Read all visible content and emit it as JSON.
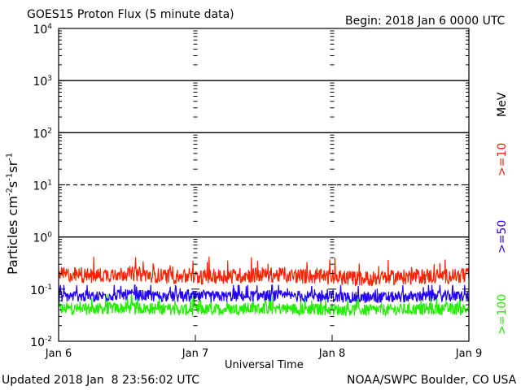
{
  "title": "GOES15 Proton Flux (5 minute data)",
  "begin_label": "Begin: 2018 Jan 6 0000 UTC",
  "updated_label": "Updated 2018 Jan  8 23:56:02 UTC",
  "credit_label": "NOAA/SWPC Boulder, CO USA",
  "chart_data": {
    "type": "line",
    "title": "GOES15 Proton Flux (5 minute data)",
    "xlabel": "Universal Time",
    "ylabel": "Particles cm-2 s-1 sr-1",
    "yscale": "log",
    "ylim": [
      0.01,
      10000
    ],
    "xlim": [
      "2018-01-06 00:00",
      "2018-01-09 00:00"
    ],
    "x_ticks": [
      "Jan 6",
      "Jan 7",
      "Jan 8",
      "Jan 9"
    ],
    "y_ticks": [
      {
        "base": "10",
        "exp": "-2",
        "value": 0.01
      },
      {
        "base": "10",
        "exp": "-1",
        "value": 0.1
      },
      {
        "base": "10",
        "exp": "0",
        "value": 1
      },
      {
        "base": "10",
        "exp": "1",
        "value": 10
      },
      {
        "base": "10",
        "exp": "2",
        "value": 100
      },
      {
        "base": "10",
        "exp": "3",
        "value": 1000
      },
      {
        "base": "10",
        "exp": "4",
        "value": 10000
      }
    ],
    "threshold_lines": [
      {
        "value": 1,
        "style": "solid"
      },
      {
        "value": 10,
        "style": "dashed"
      },
      {
        "value": 100,
        "style": "solid"
      },
      {
        "value": 1000,
        "style": "solid"
      }
    ],
    "unit_label": "MeV",
    "grid": false,
    "legend_position": "right",
    "series": [
      {
        "name": ">=10",
        "color": "#ff2200",
        "typical": 0.17,
        "min": 0.1,
        "max": 0.45,
        "x": [
          "2018-01-06 00:00",
          "2018-01-06 06:00",
          "2018-01-06 12:00",
          "2018-01-06 18:00",
          "2018-01-07 00:00",
          "2018-01-07 06:00",
          "2018-01-07 12:00",
          "2018-01-07 18:00",
          "2018-01-08 00:00",
          "2018-01-08 06:00",
          "2018-01-08 12:00",
          "2018-01-08 18:00",
          "2018-01-09 00:00"
        ],
        "values": [
          0.18,
          0.17,
          0.19,
          0.17,
          0.16,
          0.17,
          0.18,
          0.17,
          0.16,
          0.15,
          0.16,
          0.17,
          0.17
        ]
      },
      {
        "name": ">=50",
        "color": "#2200ff",
        "typical": 0.07,
        "min": 0.04,
        "max": 0.12,
        "x": [
          "2018-01-06 00:00",
          "2018-01-06 06:00",
          "2018-01-06 12:00",
          "2018-01-06 18:00",
          "2018-01-07 00:00",
          "2018-01-07 06:00",
          "2018-01-07 12:00",
          "2018-01-07 18:00",
          "2018-01-08 00:00",
          "2018-01-08 06:00",
          "2018-01-08 12:00",
          "2018-01-08 18:00",
          "2018-01-09 00:00"
        ],
        "values": [
          0.07,
          0.07,
          0.075,
          0.07,
          0.068,
          0.07,
          0.072,
          0.07,
          0.068,
          0.066,
          0.068,
          0.07,
          0.07
        ]
      },
      {
        "name": ">=100",
        "color": "#22ee00",
        "typical": 0.04,
        "min": 0.025,
        "max": 0.08,
        "x": [
          "2018-01-06 00:00",
          "2018-01-06 06:00",
          "2018-01-06 12:00",
          "2018-01-06 18:00",
          "2018-01-07 00:00",
          "2018-01-07 06:00",
          "2018-01-07 12:00",
          "2018-01-07 18:00",
          "2018-01-08 00:00",
          "2018-01-08 06:00",
          "2018-01-08 12:00",
          "2018-01-08 18:00",
          "2018-01-09 00:00"
        ],
        "values": [
          0.04,
          0.04,
          0.042,
          0.04,
          0.038,
          0.04,
          0.041,
          0.04,
          0.039,
          0.038,
          0.039,
          0.04,
          0.04
        ]
      }
    ]
  },
  "colors": {
    "p10": "#ff2200",
    "p50": "#2200ff",
    "p100": "#22ee00",
    "axes": "#000000",
    "background": "#ffffff"
  }
}
